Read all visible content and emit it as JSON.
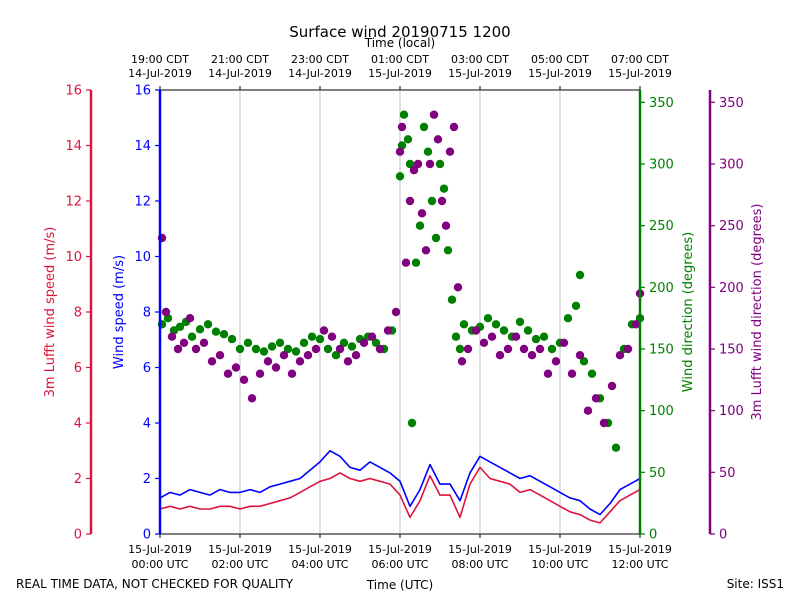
{
  "chart_data": {
    "type": "line",
    "title": "Surface wind 20190715 1200",
    "top_axis_label": "Time (local)",
    "xlabel": "Time (UTC)",
    "footer_left": "REAL TIME DATA, NOT CHECKED FOR QUALITY",
    "footer_right": "Site: ISS1",
    "x_range_hours": [
      0,
      12
    ],
    "grid": "vertical",
    "bottom_ticks": [
      {
        "hour": 0,
        "line1": "15-Jul-2019",
        "line2": "00:00 UTC"
      },
      {
        "hour": 2,
        "line1": "15-Jul-2019",
        "line2": "02:00 UTC"
      },
      {
        "hour": 4,
        "line1": "15-Jul-2019",
        "line2": "04:00 UTC"
      },
      {
        "hour": 6,
        "line1": "15-Jul-2019",
        "line2": "06:00 UTC"
      },
      {
        "hour": 8,
        "line1": "15-Jul-2019",
        "line2": "08:00 UTC"
      },
      {
        "hour": 10,
        "line1": "15-Jul-2019",
        "line2": "10:00 UTC"
      },
      {
        "hour": 12,
        "line1": "15-Jul-2019",
        "line2": "12:00 UTC"
      }
    ],
    "top_ticks": [
      {
        "hour": 0,
        "line1": "19:00 CDT",
        "line2": "14-Jul-2019"
      },
      {
        "hour": 2,
        "line1": "21:00 CDT",
        "line2": "14-Jul-2019"
      },
      {
        "hour": 4,
        "line1": "23:00 CDT",
        "line2": "14-Jul-2019"
      },
      {
        "hour": 6,
        "line1": "01:00 CDT",
        "line2": "15-Jul-2019"
      },
      {
        "hour": 8,
        "line1": "03:00 CDT",
        "line2": "15-Jul-2019"
      },
      {
        "hour": 10,
        "line1": "05:00 CDT",
        "line2": "15-Jul-2019"
      },
      {
        "hour": 12,
        "line1": "07:00 CDT",
        "line2": "15-Jul-2019"
      }
    ],
    "axes": {
      "lufft_speed": {
        "label": "3m Lufft wind speed (m/s)",
        "ylim": [
          0,
          16
        ],
        "ticks": [
          "0",
          "2",
          "4",
          "6",
          "8",
          "10",
          "12",
          "14",
          "16"
        ],
        "color": "#dc143c"
      },
      "speed": {
        "label": "Wind speed (m/s)",
        "ylim": [
          0,
          16
        ],
        "ticks": [
          "0",
          "2",
          "4",
          "6",
          "8",
          "10",
          "12",
          "14",
          "16"
        ],
        "color": "#0000ff"
      },
      "direction": {
        "label": "Wind direction (degrees)",
        "ylim": [
          0,
          360
        ],
        "ticks": [
          "0",
          "50",
          "100",
          "150",
          "200",
          "250",
          "300",
          "350"
        ],
        "color": "#008000"
      },
      "lufft_direction": {
        "label": "3m Lufft wind direction (degrees)",
        "ylim": [
          0,
          360
        ],
        "ticks": [
          "0",
          "50",
          "100",
          "150",
          "200",
          "250",
          "300",
          "350"
        ],
        "color": "#800080"
      }
    },
    "series": [
      {
        "name": "Wind speed (m/s)",
        "axis": "speed",
        "kind": "line",
        "color": "#0000ff",
        "x": [
          0,
          0.25,
          0.5,
          0.75,
          1,
          1.25,
          1.5,
          1.75,
          2,
          2.25,
          2.5,
          2.75,
          3,
          3.25,
          3.5,
          3.75,
          4,
          4.25,
          4.5,
          4.75,
          5,
          5.25,
          5.5,
          5.75,
          6,
          6.25,
          6.5,
          6.75,
          7,
          7.25,
          7.5,
          7.75,
          8,
          8.25,
          8.5,
          8.75,
          9,
          9.25,
          9.5,
          9.75,
          10,
          10.25,
          10.5,
          10.75,
          11,
          11.25,
          11.5,
          11.75,
          12
        ],
        "values": [
          1.3,
          1.5,
          1.4,
          1.6,
          1.5,
          1.4,
          1.6,
          1.5,
          1.5,
          1.6,
          1.5,
          1.7,
          1.8,
          1.9,
          2.0,
          2.3,
          2.6,
          3.0,
          2.8,
          2.4,
          2.3,
          2.6,
          2.4,
          2.2,
          1.9,
          1.0,
          1.6,
          2.5,
          1.8,
          1.8,
          1.2,
          2.2,
          2.8,
          2.6,
          2.4,
          2.2,
          2.0,
          2.1,
          1.9,
          1.7,
          1.5,
          1.3,
          1.2,
          0.9,
          0.7,
          1.1,
          1.6,
          1.8,
          2.0
        ]
      },
      {
        "name": "3m Lufft wind speed (m/s)",
        "axis": "lufft_speed",
        "kind": "line",
        "color": "#dc143c",
        "x": [
          0,
          0.25,
          0.5,
          0.75,
          1,
          1.25,
          1.5,
          1.75,
          2,
          2.25,
          2.5,
          2.75,
          3,
          3.25,
          3.5,
          3.75,
          4,
          4.25,
          4.5,
          4.75,
          5,
          5.25,
          5.5,
          5.75,
          6,
          6.25,
          6.5,
          6.75,
          7,
          7.25,
          7.5,
          7.75,
          8,
          8.25,
          8.5,
          8.75,
          9,
          9.25,
          9.5,
          9.75,
          10,
          10.25,
          10.5,
          10.75,
          11,
          11.25,
          11.5,
          11.75,
          12
        ],
        "values": [
          0.9,
          1.0,
          0.9,
          1.0,
          0.9,
          0.9,
          1.0,
          1.0,
          0.9,
          1.0,
          1.0,
          1.1,
          1.2,
          1.3,
          1.5,
          1.7,
          1.9,
          2.0,
          2.2,
          2.0,
          1.9,
          2.0,
          1.9,
          1.8,
          1.4,
          0.6,
          1.2,
          2.1,
          1.4,
          1.4,
          0.6,
          1.8,
          2.4,
          2.0,
          1.9,
          1.8,
          1.5,
          1.6,
          1.4,
          1.2,
          1.0,
          0.8,
          0.7,
          0.5,
          0.4,
          0.8,
          1.2,
          1.4,
          1.6
        ]
      },
      {
        "name": "Wind direction (degrees)",
        "axis": "direction",
        "kind": "scatter",
        "color": "#008000",
        "x": [
          0.05,
          0.2,
          0.35,
          0.5,
          0.65,
          0.8,
          1.0,
          1.2,
          1.4,
          1.6,
          1.8,
          2.0,
          2.2,
          2.4,
          2.6,
          2.8,
          3.0,
          3.2,
          3.4,
          3.6,
          3.8,
          4.0,
          4.2,
          4.4,
          4.6,
          4.8,
          5.0,
          5.2,
          5.4,
          5.6,
          5.8,
          6.0,
          6.05,
          6.1,
          6.2,
          6.25,
          6.3,
          6.4,
          6.5,
          6.6,
          6.7,
          6.8,
          6.9,
          7.0,
          7.1,
          7.2,
          7.3,
          7.4,
          7.5,
          7.6,
          7.8,
          8.0,
          8.2,
          8.4,
          8.6,
          8.8,
          9.0,
          9.2,
          9.4,
          9.6,
          9.8,
          10.0,
          10.2,
          10.4,
          10.5,
          10.6,
          10.8,
          11.0,
          11.2,
          11.4,
          11.6,
          11.8,
          12.0
        ],
        "values": [
          170,
          175,
          165,
          168,
          172,
          160,
          166,
          170,
          164,
          162,
          158,
          150,
          155,
          150,
          148,
          152,
          155,
          150,
          148,
          155,
          160,
          158,
          150,
          145,
          155,
          152,
          158,
          160,
          155,
          150,
          165,
          290,
          315,
          340,
          320,
          300,
          90,
          220,
          250,
          330,
          310,
          270,
          240,
          300,
          280,
          230,
          190,
          160,
          150,
          170,
          165,
          168,
          175,
          170,
          165,
          160,
          172,
          165,
          158,
          160,
          150,
          155,
          175,
          185,
          210,
          140,
          130,
          110,
          90,
          70,
          150,
          170,
          175
        ]
      },
      {
        "name": "3m Lufft wind direction (degrees)",
        "axis": "lufft_direction",
        "kind": "scatter",
        "color": "#800080",
        "x": [
          0.05,
          0.15,
          0.3,
          0.45,
          0.6,
          0.75,
          0.9,
          1.1,
          1.3,
          1.5,
          1.7,
          1.9,
          2.1,
          2.3,
          2.5,
          2.7,
          2.9,
          3.1,
          3.3,
          3.5,
          3.7,
          3.9,
          4.1,
          4.3,
          4.5,
          4.7,
          4.9,
          5.1,
          5.3,
          5.5,
          5.7,
          5.9,
          6.0,
          6.05,
          6.15,
          6.25,
          6.35,
          6.45,
          6.55,
          6.65,
          6.75,
          6.85,
          6.95,
          7.05,
          7.15,
          7.25,
          7.35,
          7.45,
          7.55,
          7.7,
          7.9,
          8.1,
          8.3,
          8.5,
          8.7,
          8.9,
          9.1,
          9.3,
          9.5,
          9.7,
          9.9,
          10.1,
          10.3,
          10.5,
          10.7,
          10.9,
          11.1,
          11.3,
          11.5,
          11.7,
          11.9,
          12.0
        ],
        "values": [
          240,
          180,
          160,
          150,
          155,
          175,
          150,
          155,
          140,
          145,
          130,
          135,
          125,
          110,
          130,
          140,
          135,
          145,
          130,
          140,
          145,
          150,
          165,
          160,
          150,
          140,
          145,
          155,
          160,
          150,
          165,
          180,
          310,
          330,
          220,
          270,
          295,
          300,
          260,
          230,
          300,
          340,
          320,
          270,
          250,
          310,
          330,
          200,
          140,
          150,
          165,
          155,
          160,
          145,
          150,
          160,
          150,
          145,
          150,
          130,
          140,
          155,
          130,
          145,
          100,
          110,
          90,
          120,
          145,
          150,
          170,
          195
        ]
      }
    ]
  }
}
